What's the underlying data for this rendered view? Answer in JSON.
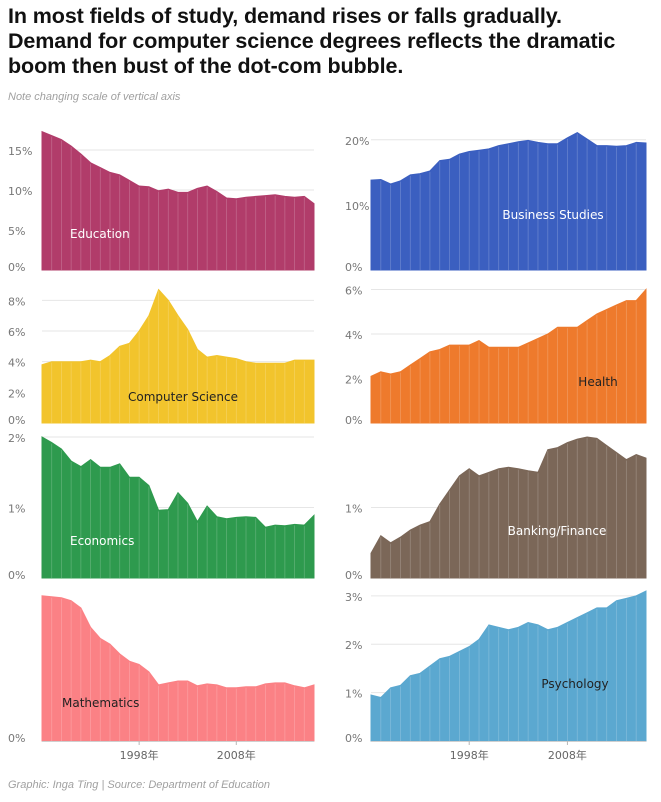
{
  "title": {
    "line1": "In most fields of study, demand rises or falls gradually.",
    "line2": "Demand for computer science degrees reflects the dramatic",
    "line3": "boom then bust of the dot-com bubble."
  },
  "subtitle": "Note changing scale of vertical axis",
  "footer": "Graphic: Inga Ting | Source: Department of Education",
  "x_axis": {
    "ticks": [
      {
        "year": 1998,
        "label": "1998年"
      },
      {
        "year": 2008,
        "label": "2008年"
      }
    ]
  },
  "chart_data": [
    {
      "type": "area",
      "panel": "Education",
      "color": "#b13c6a",
      "label_color": "#ffffff",
      "ylim": [
        0,
        17.5
      ],
      "yticks": [
        0,
        5,
        10,
        15
      ],
      "ytick_labels": [
        "0%",
        "5%",
        "10%",
        "15%"
      ],
      "x": [
        1988,
        1989,
        1990,
        1991,
        1992,
        1993,
        1994,
        1995,
        1996,
        1997,
        1998,
        1999,
        2000,
        2001,
        2002,
        2003,
        2004,
        2005,
        2006,
        2007,
        2008,
        2009,
        2010,
        2011,
        2012,
        2013,
        2014,
        2015,
        2016
      ],
      "values": [
        17.3,
        16.8,
        16.3,
        15.5,
        14.5,
        13.4,
        12.8,
        12.2,
        11.9,
        11.2,
        10.5,
        10.4,
        9.9,
        10.1,
        9.7,
        9.7,
        10.2,
        10.5,
        9.8,
        9.0,
        8.9,
        9.1,
        9.2,
        9.3,
        9.4,
        9.2,
        9.1,
        9.2,
        8.3
      ]
    },
    {
      "type": "area",
      "panel": "Business Studies",
      "color": "#3b5fc0",
      "label_color": "#ffffff",
      "ylim": [
        0,
        21.5
      ],
      "yticks": [
        0,
        10,
        20
      ],
      "ytick_labels": [
        "0%",
        "10%",
        "20%"
      ],
      "x": [
        1988,
        1989,
        1990,
        1991,
        1992,
        1993,
        1994,
        1995,
        1996,
        1997,
        1998,
        1999,
        2000,
        2001,
        2002,
        2003,
        2004,
        2005,
        2006,
        2007,
        2008,
        2009,
        2010,
        2011,
        2012,
        2013,
        2014,
        2015,
        2016
      ],
      "values": [
        13.8,
        13.9,
        13.2,
        13.7,
        14.6,
        14.8,
        15.2,
        16.8,
        17.0,
        17.8,
        18.2,
        18.4,
        18.6,
        19.1,
        19.4,
        19.7,
        19.9,
        19.6,
        19.4,
        19.4,
        20.3,
        21.1,
        20.1,
        19.1,
        19.1,
        19.0,
        19.1,
        19.6,
        19.5
      ]
    },
    {
      "type": "area",
      "panel": "Computer Science",
      "color": "#f2c42c",
      "label_color": "#222222",
      "ylim": [
        0,
        9
      ],
      "yticks": [
        0,
        2,
        4,
        6,
        8
      ],
      "ytick_labels": [
        "0%",
        "2%",
        "4%",
        "6%",
        "8%"
      ],
      "x": [
        1988,
        1989,
        1990,
        1991,
        1992,
        1993,
        1994,
        1995,
        1996,
        1997,
        1998,
        1999,
        2000,
        2001,
        2002,
        2003,
        2004,
        2005,
        2006,
        2007,
        2008,
        2009,
        2010,
        2011,
        2012,
        2013,
        2014,
        2015,
        2016
      ],
      "values": [
        3.8,
        4.0,
        4.0,
        4.0,
        4.0,
        4.1,
        4.0,
        4.4,
        5.0,
        5.2,
        6.0,
        7.0,
        8.7,
        8.0,
        7.0,
        6.1,
        4.8,
        4.3,
        4.4,
        4.3,
        4.2,
        4.0,
        3.9,
        3.9,
        3.9,
        3.9,
        4.1,
        4.1,
        4.1
      ]
    },
    {
      "type": "area",
      "panel": "Health",
      "color": "#ee7a2c",
      "label_color": "#222222",
      "ylim": [
        0,
        6.2
      ],
      "yticks": [
        0,
        2,
        4,
        6
      ],
      "ytick_labels": [
        "0%",
        "2%",
        "4%",
        "6%"
      ],
      "x": [
        1988,
        1989,
        1990,
        1991,
        1992,
        1993,
        1994,
        1995,
        1996,
        1997,
        1998,
        1999,
        2000,
        2001,
        2002,
        2003,
        2004,
        2005,
        2006,
        2007,
        2008,
        2009,
        2010,
        2011,
        2012,
        2013,
        2014,
        2015,
        2016
      ],
      "values": [
        2.1,
        2.3,
        2.2,
        2.3,
        2.6,
        2.9,
        3.2,
        3.3,
        3.5,
        3.5,
        3.5,
        3.7,
        3.4,
        3.4,
        3.4,
        3.4,
        3.6,
        3.8,
        4.0,
        4.3,
        4.3,
        4.3,
        4.6,
        4.9,
        5.1,
        5.3,
        5.5,
        5.5,
        6.0
      ]
    },
    {
      "type": "area",
      "panel": "Economics",
      "color": "#2e9a4e",
      "label_color": "#ffffff",
      "ylim": [
        0,
        2.0
      ],
      "yticks": [
        0,
        1,
        2
      ],
      "ytick_labels": [
        "0%",
        "1%",
        "2%"
      ],
      "x": [
        1988,
        1989,
        1990,
        1991,
        1992,
        1993,
        1994,
        1995,
        1996,
        1997,
        1998,
        1999,
        2000,
        2001,
        2002,
        2003,
        2004,
        2005,
        2006,
        2007,
        2008,
        2009,
        2010,
        2011,
        2012,
        2013,
        2014,
        2015,
        2016
      ],
      "values": [
        2.0,
        1.92,
        1.83,
        1.66,
        1.58,
        1.68,
        1.57,
        1.57,
        1.62,
        1.43,
        1.43,
        1.31,
        0.96,
        0.97,
        1.21,
        1.06,
        0.8,
        1.02,
        0.87,
        0.84,
        0.86,
        0.87,
        0.86,
        0.72,
        0.75,
        0.74,
        0.76,
        0.75,
        0.89
      ]
    },
    {
      "type": "area",
      "panel": "Banking/Finance",
      "color": "#7b6758",
      "label_color": "#ffffff",
      "ylim": [
        0,
        2.0
      ],
      "yticks": [
        0,
        1
      ],
      "ytick_labels": [
        "0%",
        "1%"
      ],
      "x": [
        1988,
        1989,
        1990,
        1991,
        1992,
        1993,
        1994,
        1995,
        1996,
        1997,
        1998,
        1999,
        2000,
        2001,
        2002,
        2003,
        2004,
        2005,
        2006,
        2007,
        2008,
        2009,
        2010,
        2011,
        2012,
        2013,
        2014,
        2015,
        2016
      ],
      "values": [
        0.35,
        0.6,
        0.5,
        0.58,
        0.68,
        0.75,
        0.8,
        1.05,
        1.25,
        1.45,
        1.55,
        1.45,
        1.5,
        1.55,
        1.57,
        1.55,
        1.52,
        1.5,
        1.82,
        1.85,
        1.92,
        1.97,
        2.0,
        1.98,
        1.88,
        1.78,
        1.68,
        1.75,
        1.7
      ]
    },
    {
      "type": "area",
      "panel": "Mathematics",
      "color": "#fb8185",
      "label_color": "#222222",
      "ylim": [
        0,
        0.31
      ],
      "yticks": [
        0
      ],
      "ytick_labels": [
        "0%"
      ],
      "x": [
        1988,
        1989,
        1990,
        1991,
        1992,
        1993,
        1994,
        1995,
        1996,
        1997,
        1998,
        1999,
        2000,
        2001,
        2002,
        2003,
        2004,
        2005,
        2006,
        2007,
        2008,
        2009,
        2010,
        2011,
        2012,
        2013,
        2014,
        2015,
        2016
      ],
      "values": [
        0.3,
        0.298,
        0.296,
        0.29,
        0.275,
        0.235,
        0.212,
        0.2,
        0.18,
        0.165,
        0.158,
        0.143,
        0.116,
        0.12,
        0.124,
        0.124,
        0.114,
        0.118,
        0.116,
        0.11,
        0.11,
        0.112,
        0.112,
        0.118,
        0.12,
        0.12,
        0.114,
        0.11,
        0.116
      ]
    },
    {
      "type": "area",
      "panel": "Psychology",
      "color": "#5ba8d0",
      "label_color": "#222222",
      "ylim": [
        0,
        3.1
      ],
      "yticks": [
        0,
        1,
        2,
        3
      ],
      "ytick_labels": [
        "0%",
        "1%",
        "2%",
        "3%"
      ],
      "x": [
        1988,
        1989,
        1990,
        1991,
        1992,
        1993,
        1994,
        1995,
        1996,
        1997,
        1998,
        1999,
        2000,
        2001,
        2002,
        2003,
        2004,
        2005,
        2006,
        2007,
        2008,
        2009,
        2010,
        2011,
        2012,
        2013,
        2014,
        2015,
        2016
      ],
      "values": [
        0.95,
        0.9,
        1.1,
        1.15,
        1.35,
        1.4,
        1.55,
        1.7,
        1.75,
        1.85,
        1.95,
        2.1,
        2.4,
        2.35,
        2.3,
        2.35,
        2.45,
        2.4,
        2.3,
        2.35,
        2.45,
        2.55,
        2.65,
        2.75,
        2.75,
        2.9,
        2.95,
        3.0,
        3.1
      ]
    }
  ]
}
